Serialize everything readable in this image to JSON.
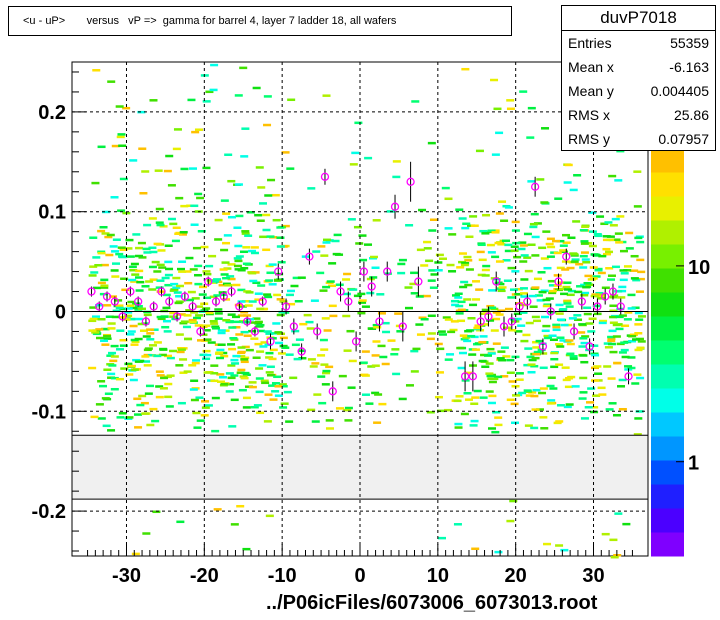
{
  "chart_data": {
    "type": "scatter",
    "title": "<u - uP>       versus   vP =>  gamma for barrel 4, layer 7 ladder 18, all wafers",
    "xlabel": "",
    "ylabel": "",
    "xlim": [
      -37,
      37
    ],
    "ylim": [
      -0.245,
      0.25
    ],
    "x_ticks": [
      -30,
      -20,
      -10,
      0,
      10,
      20,
      30
    ],
    "x_tick_labels": [
      "-30",
      "-20",
      "-10",
      "0",
      "10",
      "20",
      "30"
    ],
    "y_ticks": [
      0.2,
      0.1,
      0,
      -0.1,
      -0.2
    ],
    "y_tick_labels": [
      "0.2",
      "0.1",
      "0",
      "-0.1",
      "-0.2"
    ],
    "grid": "dashed",
    "excluded_band": [
      -0.188,
      -0.124
    ],
    "colorbar": {
      "labels": [
        "10",
        "1"
      ],
      "label_values": [
        10,
        1
      ],
      "scale": "log",
      "colors": [
        "#7f00ff",
        "#4b00ff",
        "#1f1fff",
        "#0050ff",
        "#0096ff",
        "#00c8ff",
        "#00ffe8",
        "#00ffb0",
        "#00ff70",
        "#00f040",
        "#10e010",
        "#40e000",
        "#78f000",
        "#b0f000",
        "#e8f000",
        "#ffe000",
        "#ffc000"
      ]
    },
    "series": [
      {
        "marker": "open-circle-with-error-bar",
        "color": "#ff00ff",
        "x": [
          -34.5,
          -33.5,
          -32.5,
          -31.5,
          -30.5,
          -29.5,
          -28.5,
          -27.5,
          -26.5,
          -25.5,
          -24.5,
          -23.5,
          -22.5,
          -21.5,
          -20.5,
          -19.5,
          -18.5,
          -17.5,
          -16.5,
          -15.5,
          -14.5,
          -13.5,
          -12.5,
          -11.5,
          -10.5,
          -9.5,
          -8.5,
          -7.5,
          -6.5,
          -5.5,
          -4.5,
          -3.5,
          -2.5,
          -1.5,
          -0.5,
          0.5,
          1.5,
          2.5,
          3.5,
          4.5,
          5.5,
          6.5,
          7.5,
          13.5,
          14.5,
          15.5,
          16.5,
          17.5,
          18.5,
          19.5,
          20.5,
          21.5,
          22.5,
          23.5,
          24.5,
          25.5,
          26.5,
          27.5,
          28.5,
          29.5,
          30.5,
          31.5,
          32.5,
          33.5,
          34.5
        ],
        "y": [
          0.02,
          0.005,
          0.015,
          0.01,
          -0.005,
          0.02,
          0.01,
          -0.01,
          0.005,
          0.02,
          0.01,
          -0.005,
          0.015,
          0.005,
          -0.02,
          0.03,
          0.01,
          0.015,
          0.02,
          0.005,
          -0.01,
          -0.02,
          0.01,
          -0.03,
          0.04,
          0.005,
          -0.015,
          -0.04,
          0.055,
          -0.02,
          0.135,
          -0.08,
          0.02,
          0.01,
          -0.03,
          0.04,
          0.025,
          -0.01,
          0.04,
          0.105,
          -0.015,
          0.13,
          0.03,
          -0.065,
          -0.065,
          -0.01,
          -0.005,
          0.03,
          -0.015,
          -0.01,
          0.005,
          0.01,
          0.125,
          -0.035,
          0.0,
          0.03,
          0.055,
          -0.02,
          0.01,
          -0.035,
          0.005,
          0.015,
          0.02,
          0.005,
          -0.065
        ],
        "y_err": [
          0.005,
          0.005,
          0.005,
          0.005,
          0.005,
          0.005,
          0.005,
          0.005,
          0.005,
          0.005,
          0.005,
          0.005,
          0.005,
          0.005,
          0.005,
          0.005,
          0.005,
          0.005,
          0.005,
          0.005,
          0.005,
          0.005,
          0.005,
          0.008,
          0.008,
          0.008,
          0.008,
          0.008,
          0.008,
          0.008,
          0.008,
          0.01,
          0.01,
          0.01,
          0.01,
          0.01,
          0.01,
          0.01,
          0.01,
          0.012,
          0.015,
          0.02,
          0.015,
          0.015,
          0.015,
          0.01,
          0.01,
          0.01,
          0.01,
          0.008,
          0.008,
          0.008,
          0.01,
          0.008,
          0.008,
          0.008,
          0.008,
          0.008,
          0.008,
          0.008,
          0.008,
          0.008,
          0.008,
          0.008,
          0.008
        ]
      }
    ]
  },
  "stats": {
    "name": "duvP7018",
    "entries_label": "Entries",
    "entries": "55359",
    "mean_x_label": "Mean x",
    "mean_x": "-6.163",
    "mean_y_label": "Mean y",
    "mean_y": "0.004405",
    "rms_x_label": "RMS x",
    "rms_x": "25.86",
    "rms_y_label": "RMS y",
    "rms_y": "0.07957"
  },
  "footer": "../P06icFiles/6073006_6073013.root"
}
